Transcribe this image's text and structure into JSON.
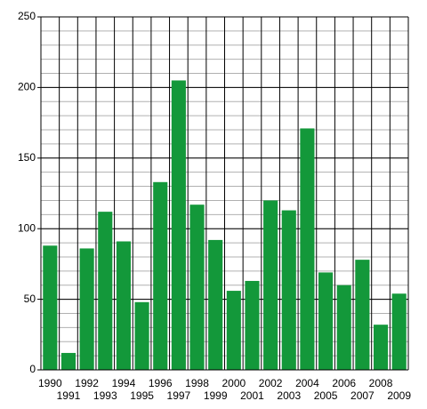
{
  "chart_data": {
    "type": "bar",
    "categories": [
      "1990",
      "1991",
      "1992",
      "1993",
      "1994",
      "1995",
      "1996",
      "1997",
      "1998",
      "1999",
      "2000",
      "2001",
      "2002",
      "2003",
      "2004",
      "2005",
      "2006",
      "2007",
      "2008",
      "2009"
    ],
    "values": [
      88,
      12,
      86,
      112,
      91,
      48,
      133,
      205,
      117,
      92,
      56,
      63,
      120,
      113,
      171,
      69,
      60,
      78,
      32,
      54
    ],
    "color": "#13983a",
    "ylim": [
      0,
      250
    ],
    "yticks": [
      0,
      50,
      100,
      150,
      200,
      250
    ],
    "grid": true,
    "minor_grid": true
  }
}
